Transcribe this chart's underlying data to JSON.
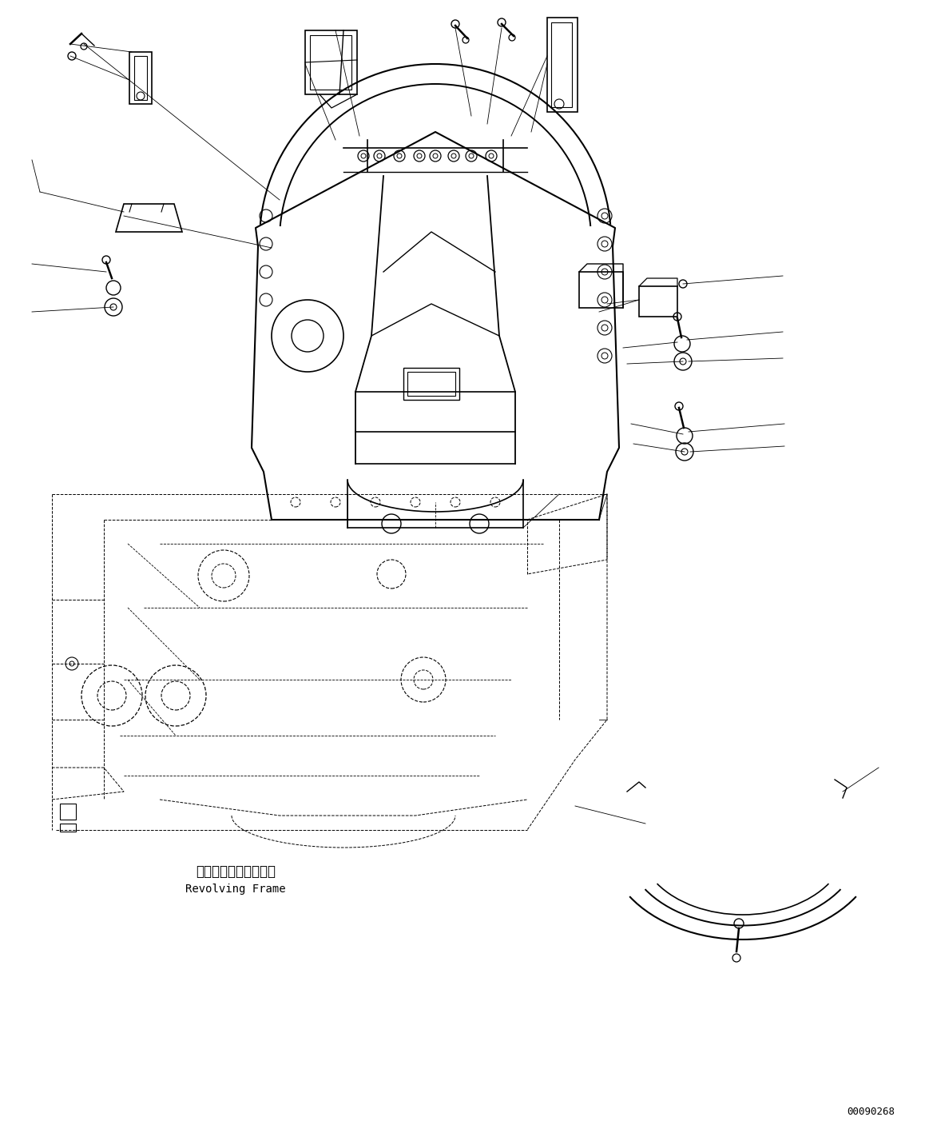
{
  "title": "",
  "background_color": "#ffffff",
  "line_color": "#000000",
  "label_bottom_jp": "レボルビングフレーム",
  "label_bottom_en": "Revolving Frame",
  "code": "00090268",
  "fig_width": 11.63,
  "fig_height": 14.12
}
